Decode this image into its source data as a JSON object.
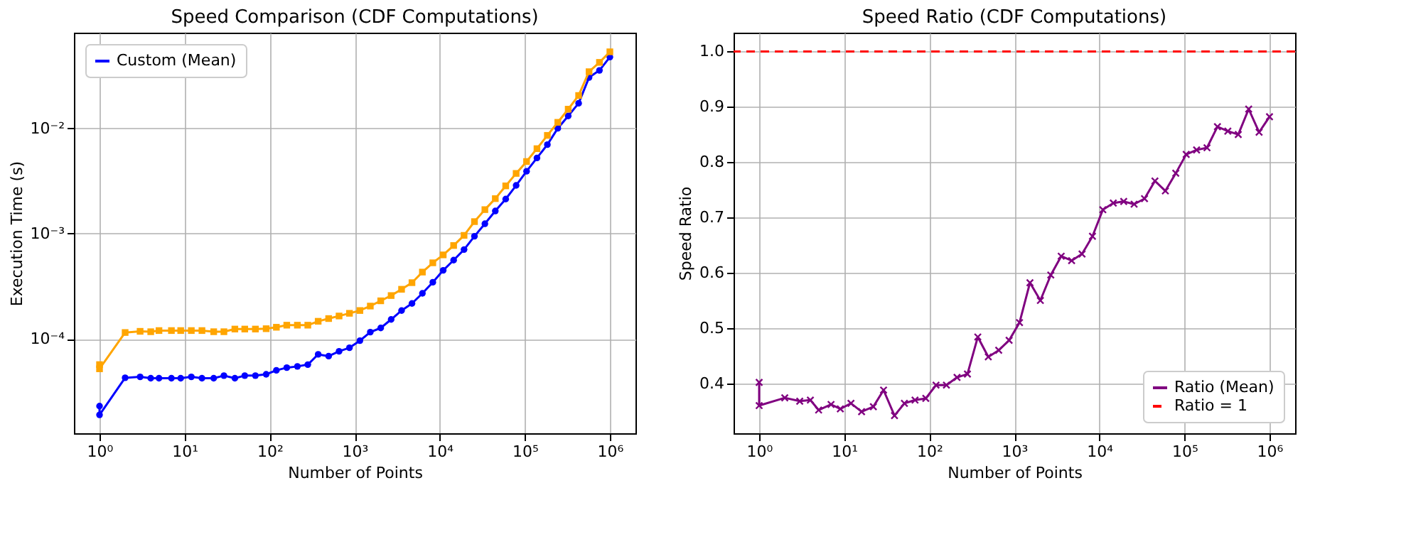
{
  "chart_data": [
    {
      "type": "line",
      "title": "Speed Comparison (CDF Computations)",
      "xlabel": "Number of Points",
      "ylabel": "Execution Time (s)",
      "x": [
        1,
        1,
        2,
        3,
        4,
        5,
        7,
        9,
        12,
        16,
        22,
        29,
        39,
        51,
        68,
        91,
        120,
        159,
        212,
        281,
        372,
        494,
        655,
        868,
        1151,
        1526,
        2023,
        2682,
        3556,
        4714,
        6250,
        8286,
        10985,
        14563,
        19306,
        25595,
        33932,
        44984,
        59636,
        79060,
        104811,
        138949,
        184206,
        244205,
        323745,
        429193,
        568986,
        754312,
        1000000
      ],
      "series": [
        {
          "name": "Custom (Mean)",
          "color": "#0000ff",
          "marker": "circle",
          "values": [
            2.3e-05,
            1.9e-05,
            4.27e-05,
            4.36e-05,
            4.23e-05,
            4.23e-05,
            4.23e-05,
            4.23e-05,
            4.36e-05,
            4.23e-05,
            4.23e-05,
            4.48e-05,
            4.23e-05,
            4.48e-05,
            4.48e-05,
            4.61e-05,
            5.03e-05,
            5.33e-05,
            5.48e-05,
            5.7e-05,
            7.13e-05,
            6.86e-05,
            7.62e-05,
            8.24e-05,
            9.62e-05,
            0.000116,
            0.000127,
            0.000153,
            0.000186,
            0.000217,
            0.000271,
            0.000345,
            0.000448,
            0.00056,
            0.000706,
            0.000944,
            0.00124,
            0.00164,
            0.00213,
            0.00287,
            0.00391,
            0.00523,
            0.007,
            0.01,
            0.0131,
            0.0173,
            0.0304,
            0.0355,
            0.0475
          ]
        },
        {
          "color": "#ffa500",
          "marker": "square",
          "values": [
            5.7e-05,
            5.2e-05,
            0.000115,
            0.000118,
            0.000117,
            0.00012,
            0.00012,
            0.00012,
            0.00012,
            0.00012,
            0.000117,
            0.000117,
            0.000124,
            0.000124,
            0.000124,
            0.000125,
            0.000129,
            0.000135,
            0.000135,
            0.000135,
            0.000147,
            0.000156,
            0.000165,
            0.000175,
            0.000186,
            0.000205,
            0.00023,
            0.000258,
            0.000296,
            0.000342,
            0.000431,
            0.000528,
            0.000628,
            0.000771,
            0.000962,
            0.0013,
            0.00169,
            0.00215,
            0.00284,
            0.00373,
            0.00484,
            0.00641,
            0.00857,
            0.0114,
            0.0152,
            0.0205,
            0.0345,
            0.0423,
            0.0533
          ]
        }
      ],
      "log": "xy",
      "xlim": [
        0.5,
        2000000
      ],
      "ylim": [
        1.27e-05,
        0.081
      ],
      "xticks": [
        {
          "value": 1,
          "label": "10⁰"
        },
        {
          "value": 10,
          "label": "10¹"
        },
        {
          "value": 100,
          "label": "10²"
        },
        {
          "value": 1000,
          "label": "10³"
        },
        {
          "value": 10000,
          "label": "10⁴"
        },
        {
          "value": 100000,
          "label": "10⁵"
        },
        {
          "value": 1000000,
          "label": "10⁶"
        }
      ],
      "yticks": [
        {
          "value": 0.0001,
          "label": "10⁻⁴"
        },
        {
          "value": 0.001,
          "label": "10⁻³"
        },
        {
          "value": 0.01,
          "label": "10⁻²"
        }
      ],
      "grid": true,
      "legend": "top left"
    },
    {
      "type": "line",
      "title": "Speed Ratio (CDF Computations)",
      "xlabel": "Number of Points",
      "ylabel": "Speed Ratio",
      "x": [
        1,
        1,
        2,
        3,
        4,
        5,
        7,
        9,
        12,
        16,
        22,
        29,
        39,
        51,
        68,
        91,
        120,
        159,
        212,
        281,
        372,
        494,
        655,
        868,
        1151,
        1526,
        2023,
        2682,
        3556,
        4714,
        6250,
        8286,
        10985,
        14563,
        19306,
        25595,
        33932,
        44984,
        59636,
        79060,
        104811,
        138949,
        184206,
        244205,
        323745,
        429193,
        568986,
        754312,
        1000000
      ],
      "series": [
        {
          "name": "Ratio (Mean)",
          "color": "#800080",
          "marker": "cross",
          "values": [
            0.402,
            0.36,
            0.374,
            0.368,
            0.37,
            0.352,
            0.362,
            0.354,
            0.364,
            0.349,
            0.358,
            0.388,
            0.342,
            0.364,
            0.37,
            0.373,
            0.397,
            0.397,
            0.411,
            0.417,
            0.484,
            0.448,
            0.46,
            0.478,
            0.51,
            0.582,
            0.55,
            0.596,
            0.63,
            0.622,
            0.634,
            0.666,
            0.714,
            0.726,
            0.729,
            0.724,
            0.734,
            0.766,
            0.748,
            0.78,
            0.814,
            0.822,
            0.826,
            0.864,
            0.856,
            0.85,
            0.896,
            0.854,
            0.882
          ]
        }
      ],
      "ref_lines": [
        {
          "axis": "y",
          "value": 1,
          "label": "Ratio = 1",
          "color": "#ff0000",
          "line_style": "dashed"
        }
      ],
      "log": "x",
      "xlim": [
        0.5,
        2000000
      ],
      "ylim": [
        0.31,
        1.034
      ],
      "xticks": [
        {
          "value": 1,
          "label": "10⁰"
        },
        {
          "value": 10,
          "label": "10¹"
        },
        {
          "value": 100,
          "label": "10²"
        },
        {
          "value": 1000,
          "label": "10³"
        },
        {
          "value": 10000,
          "label": "10⁴"
        },
        {
          "value": 100000,
          "label": "10⁵"
        },
        {
          "value": 1000000,
          "label": "10⁶"
        }
      ],
      "yticks": [
        0.4,
        0.5,
        0.6,
        0.7,
        0.8,
        0.9,
        {
          "value": 1,
          "label": "1.0"
        }
      ],
      "grid": true,
      "legend": "bottom right"
    }
  ]
}
